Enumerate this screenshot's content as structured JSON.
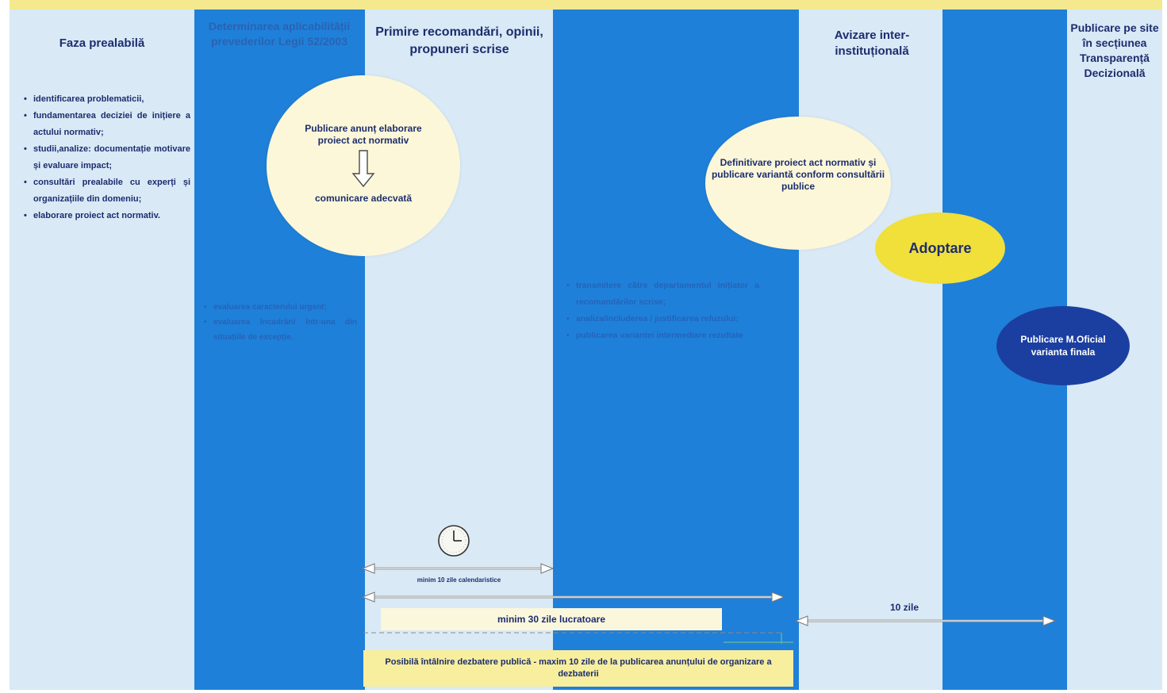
{
  "colors": {
    "band": "#f4e98e",
    "light": "#d9e9f6",
    "dark": "#1f80d9",
    "ink": "#1c2d6e",
    "cream": "#fcf7d8",
    "adopt": "#f1df3a",
    "oficial": "#1b3fa0",
    "debate": "#f7ee9e"
  },
  "phase1": {
    "title": "Faza prealabilă",
    "bullets": [
      "identificarea problematicii,",
      "fundamentarea deciziei de inițiere a actului normativ;",
      "studii,analize: documentație motivare și evaluare impact;",
      "consultări prealabile cu experți și organizațiile din domeniu;",
      "elaborare proiect act normativ."
    ]
  },
  "phase2": {
    "title": "Determinarea aplicabilității prevederilor Legii 52/2003",
    "bullets": [
      "evaluarea caracterului urgent;",
      "evaluarea încadrării într-una din situațiile de excepție."
    ]
  },
  "phase3": {
    "title": "Primire recomandări, opinii, propuneri scrise",
    "circle_top": "Publicare anunț elaborare proiect act normativ",
    "circle_bottom": "comunicare adecvată"
  },
  "phase4": {
    "bullets": [
      "transmitere către departamentul inițiator a recomandărilor scrise;",
      "analiza/includerea / justificarea refuzului;",
      "publicarea variantei intermediare rezultate"
    ]
  },
  "phase5": {
    "title": "Avizare inter-instituțională",
    "circle": "Definitivare proiect act normativ și publicare variantă conform consultării publice"
  },
  "adoptare": "Adoptare",
  "phase7": {
    "title": "Publicare pe site în secțiunea Transparență Decizională",
    "oficial": "Publicare M.Oficial varianta finala"
  },
  "timeline": {
    "min10": "minim 10 zile calendaristice",
    "min30": "minim 30 zile lucratoare",
    "z10": "10 zile",
    "debate": "Posibilă întâlnire dezbatere publică - maxim 10 zile de la publicarea anunțului de organizare a dezbaterii"
  }
}
